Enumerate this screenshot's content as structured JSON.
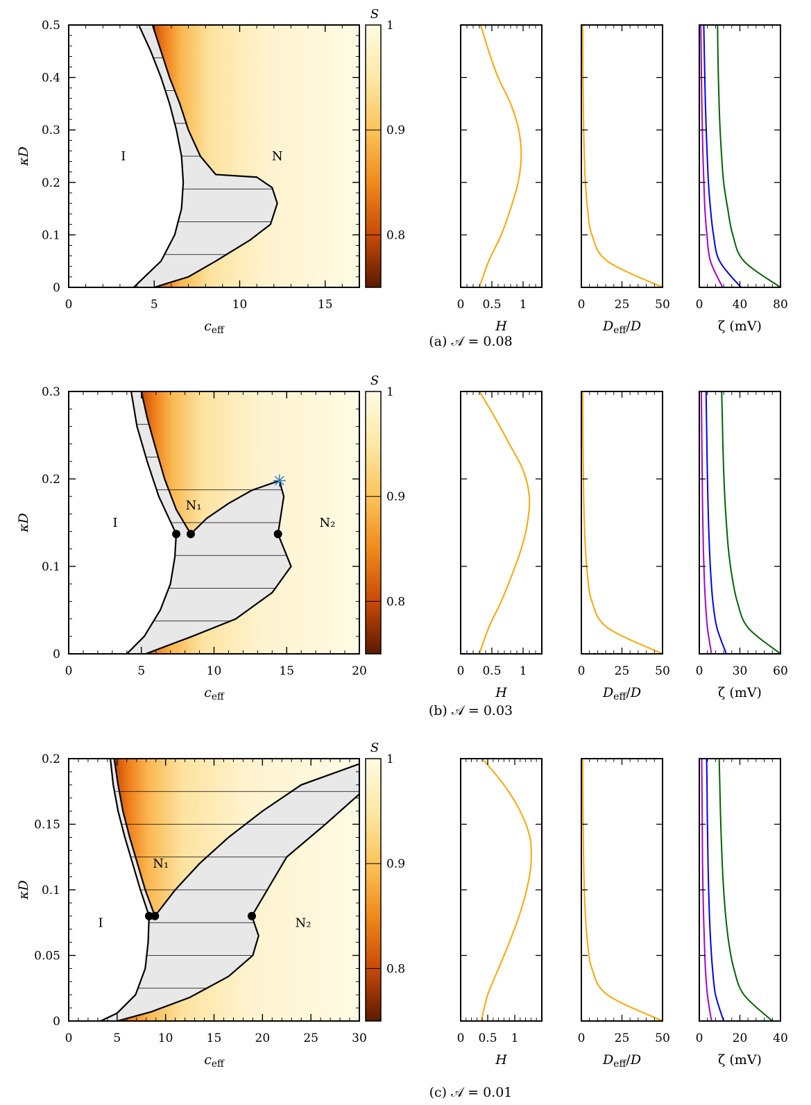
{
  "colorbar": {
    "label": "S",
    "range": [
      0.75,
      1.0
    ],
    "ticks": [
      "0.8",
      "0.9",
      "1"
    ],
    "colors": [
      "#5a1a00",
      "#c94a08",
      "#f08a1a",
      "#fbc45a",
      "#fde8a6",
      "#fffbe3"
    ]
  },
  "phase_color": "#e8e8e8",
  "line_colors": {
    "H": "#ffa500",
    "D": "#ffa500",
    "zeta": [
      "#aa00cc",
      "#0000ee",
      "#006400"
    ]
  },
  "chart_data": [
    {
      "type": "heatmap",
      "caption": "(a) 𝒜 = 0.08",
      "xlabel": "c_eff",
      "ylabel": "κD",
      "xlim": [
        0,
        17
      ],
      "ylim": [
        0,
        0.5
      ],
      "xticks": [
        "0",
        "5",
        "10",
        "15"
      ],
      "yticks": [
        "0",
        "0.1",
        "0.2",
        "0.3",
        "0.4",
        "0.5"
      ],
      "region_labels": [
        {
          "text": "I",
          "x": 3.2,
          "y": 0.25
        },
        {
          "text": "N",
          "x": 12.2,
          "y": 0.25
        }
      ],
      "critical_points": [],
      "star": null,
      "phase_left": [
        [
          4.1,
          0.5
        ],
        [
          4.8,
          0.45
        ],
        [
          5.4,
          0.4
        ],
        [
          5.9,
          0.35
        ],
        [
          6.3,
          0.3
        ],
        [
          6.6,
          0.25
        ],
        [
          6.7,
          0.2
        ],
        [
          6.6,
          0.15
        ],
        [
          6.2,
          0.1
        ],
        [
          5.4,
          0.05
        ],
        [
          3.8,
          0.0
        ]
      ],
      "phase_right": [
        [
          4.9,
          0.5
        ],
        [
          5.4,
          0.45
        ],
        [
          5.9,
          0.4
        ],
        [
          6.5,
          0.35
        ],
        [
          7.0,
          0.3
        ],
        [
          7.7,
          0.25
        ],
        [
          8.6,
          0.215
        ],
        [
          11.0,
          0.21
        ],
        [
          11.9,
          0.19
        ],
        [
          12.2,
          0.16
        ],
        [
          11.8,
          0.12
        ],
        [
          10.6,
          0.09
        ],
        [
          8.6,
          0.05
        ],
        [
          7.0,
          0.02
        ],
        [
          5.0,
          0.0
        ]
      ],
      "H": {
        "xticks": [
          "0",
          "0.5",
          "1"
        ],
        "xlim": [
          0,
          1.3
        ],
        "xlabel": "H",
        "values": [
          0.3,
          0.45,
          0.65,
          0.8,
          0.92,
          0.97,
          0.93,
          0.8,
          0.6,
          0.45,
          0.32
        ]
      },
      "Deff": {
        "xticks": [
          "0",
          "25",
          "50"
        ],
        "xlim": [
          0,
          50
        ],
        "xlabel": "D_eff/D",
        "values": [
          50,
          16,
          6.5,
          3.8,
          2.5,
          1.8,
          1.4,
          1.2,
          1.0,
          0.9,
          0.8
        ]
      },
      "zeta": {
        "xticks": [
          "0",
          "40",
          "80"
        ],
        "xlim": [
          0,
          80
        ],
        "xlabel": "ζ (mV)",
        "values": [
          [
            23,
            11,
            7.5,
            5.5,
            4.5,
            3.6,
            3.0,
            2.5,
            2.1,
            1.8,
            1.5
          ],
          [
            41,
            20,
            14,
            11,
            9,
            7.8,
            6.8,
            6.0,
            5.4,
            4.9,
            4.4
          ],
          [
            80,
            44,
            33,
            28,
            24,
            22,
            20.5,
            19.5,
            18.8,
            18.3,
            18
          ]
        ]
      }
    },
    {
      "type": "heatmap",
      "caption": "(b) 𝒜 = 0.03",
      "xlabel": "c_eff",
      "ylabel": "κD",
      "xlim": [
        0,
        20
      ],
      "ylim": [
        0,
        0.3
      ],
      "xticks": [
        "0",
        "5",
        "10",
        "15",
        "20"
      ],
      "yticks": [
        "0",
        "0.1",
        "0.2",
        "0.3"
      ],
      "region_labels": [
        {
          "text": "I",
          "x": 3.2,
          "y": 0.15
        },
        {
          "text": "N₁",
          "x": 8.6,
          "y": 0.17
        },
        {
          "text": "N₂",
          "x": 17.8,
          "y": 0.15
        }
      ],
      "critical_points": [
        [
          7.4,
          0.137
        ],
        [
          8.4,
          0.137
        ],
        [
          14.4,
          0.137
        ]
      ],
      "star": [
        14.5,
        0.198
      ],
      "phase_left": [
        [
          4.3,
          0.3
        ],
        [
          4.7,
          0.26
        ],
        [
          5.4,
          0.22
        ],
        [
          6.2,
          0.18
        ],
        [
          7.4,
          0.137
        ],
        [
          7.3,
          0.11
        ],
        [
          7.0,
          0.08
        ],
        [
          6.3,
          0.05
        ],
        [
          5.2,
          0.02
        ],
        [
          4.0,
          0.0
        ]
      ],
      "phase_right": [
        [
          5.0,
          0.3
        ],
        [
          5.4,
          0.27
        ],
        [
          5.9,
          0.24
        ],
        [
          6.6,
          0.2
        ],
        [
          7.4,
          0.165
        ],
        [
          8.4,
          0.137
        ],
        [
          9.5,
          0.155
        ],
        [
          11.0,
          0.172
        ],
        [
          12.6,
          0.187
        ],
        [
          14.5,
          0.198
        ],
        [
          14.8,
          0.18
        ],
        [
          14.4,
          0.137
        ],
        [
          15.3,
          0.1
        ],
        [
          14.0,
          0.07
        ],
        [
          11.5,
          0.04
        ],
        [
          8.5,
          0.02
        ],
        [
          5.3,
          0.0
        ]
      ],
      "H": {
        "xticks": [
          "0",
          "0.5",
          "1"
        ],
        "xlim": [
          0,
          1.3
        ],
        "xlabel": "H",
        "values": [
          0.3,
          0.45,
          0.65,
          0.82,
          0.97,
          1.07,
          1.1,
          1.0,
          0.78,
          0.55,
          0.3
        ]
      },
      "Deff": {
        "xticks": [
          "0",
          "25",
          "50"
        ],
        "xlim": [
          0,
          50
        ],
        "xlabel": "D_eff/D",
        "values": [
          50,
          16,
          6.5,
          3.8,
          2.5,
          1.8,
          1.4,
          1.2,
          1.0,
          0.9,
          0.8
        ]
      },
      "zeta": {
        "xticks": [
          "0",
          "30",
          "60"
        ],
        "xlim": [
          0,
          60
        ],
        "xlabel": "ζ (mV)",
        "values": [
          [
            9,
            6,
            4.5,
            3.6,
            3.0,
            2.6,
            2.3,
            2.1,
            1.9,
            1.7,
            1.5
          ],
          [
            20,
            13,
            10,
            8.5,
            7.5,
            6.8,
            6.3,
            5.9,
            5.6,
            5.3,
            5.0
          ],
          [
            60,
            36,
            28,
            24,
            21.5,
            20,
            18.8,
            18,
            17.4,
            17,
            16.5
          ]
        ]
      }
    },
    {
      "type": "heatmap",
      "caption": "(c) 𝒜 = 0.01",
      "xlabel": "c_eff",
      "ylabel": "κD",
      "xlim": [
        0,
        30
      ],
      "ylim": [
        0,
        0.2
      ],
      "xticks": [
        "0",
        "5",
        "10",
        "15",
        "20",
        "25",
        "30"
      ],
      "yticks": [
        "0",
        "0.05",
        "0.1",
        "0.15",
        "0.2"
      ],
      "region_labels": [
        {
          "text": "I",
          "x": 3.3,
          "y": 0.075
        },
        {
          "text": "N₁",
          "x": 9.5,
          "y": 0.12
        },
        {
          "text": "N₂",
          "x": 24.2,
          "y": 0.075
        }
      ],
      "critical_points": [
        [
          8.3,
          0.08
        ],
        [
          8.9,
          0.08
        ],
        [
          18.9,
          0.08
        ]
      ],
      "star": null,
      "phase_left": [
        [
          4.3,
          0.2
        ],
        [
          4.6,
          0.18
        ],
        [
          5.1,
          0.16
        ],
        [
          5.8,
          0.14
        ],
        [
          6.6,
          0.12
        ],
        [
          7.4,
          0.1
        ],
        [
          8.3,
          0.08
        ],
        [
          8.2,
          0.06
        ],
        [
          7.9,
          0.04
        ],
        [
          6.9,
          0.02
        ],
        [
          5.0,
          0.006
        ],
        [
          3.3,
          0.0
        ]
      ],
      "phase_right": [
        [
          4.7,
          0.2
        ],
        [
          5.1,
          0.18
        ],
        [
          5.6,
          0.16
        ],
        [
          6.3,
          0.14
        ],
        [
          7.1,
          0.12
        ],
        [
          7.9,
          0.1
        ],
        [
          8.9,
          0.08
        ],
        [
          11.0,
          0.1
        ],
        [
          13.5,
          0.12
        ],
        [
          16.5,
          0.14
        ],
        [
          20.0,
          0.16
        ],
        [
          24.0,
          0.18
        ],
        [
          30.0,
          0.196
        ],
        [
          30.0,
          0.173
        ],
        [
          26.5,
          0.15
        ],
        [
          22.5,
          0.125
        ],
        [
          20.5,
          0.1
        ],
        [
          18.9,
          0.08
        ],
        [
          19.6,
          0.065
        ],
        [
          19.0,
          0.05
        ],
        [
          16.5,
          0.034
        ],
        [
          12.5,
          0.018
        ],
        [
          8.5,
          0.007
        ],
        [
          5.0,
          0.0
        ]
      ],
      "H": {
        "xticks": [
          "0",
          "0.5",
          "1"
        ],
        "xlim": [
          0,
          1.5
        ],
        "xlabel": "H",
        "values": [
          0.38,
          0.5,
          0.7,
          0.9,
          1.08,
          1.22,
          1.3,
          1.28,
          1.1,
          0.8,
          0.4
        ]
      },
      "Deff": {
        "xticks": [
          "0",
          "25",
          "50"
        ],
        "xlim": [
          0,
          50
        ],
        "xlabel": "D_eff/D",
        "values": [
          50,
          16,
          6.5,
          3.8,
          2.5,
          1.8,
          1.4,
          1.2,
          1.0,
          0.9,
          0.8
        ]
      },
      "zeta": {
        "xticks": [
          "0",
          "20",
          "40"
        ],
        "xlim": [
          0,
          40
        ],
        "xlabel": "ζ (mV)",
        "values": [
          [
            6,
            4,
            3,
            2.5,
            2.1,
            1.8,
            1.6,
            1.5,
            1.4,
            1.3,
            1.2
          ],
          [
            12,
            8,
            6.5,
            5.6,
            5,
            4.6,
            4.3,
            4.1,
            3.9,
            3.8,
            3.6
          ],
          [
            36,
            22,
            17,
            14.5,
            13,
            12,
            11.3,
            10.8,
            10.4,
            10.1,
            9.8
          ]
        ]
      }
    }
  ]
}
